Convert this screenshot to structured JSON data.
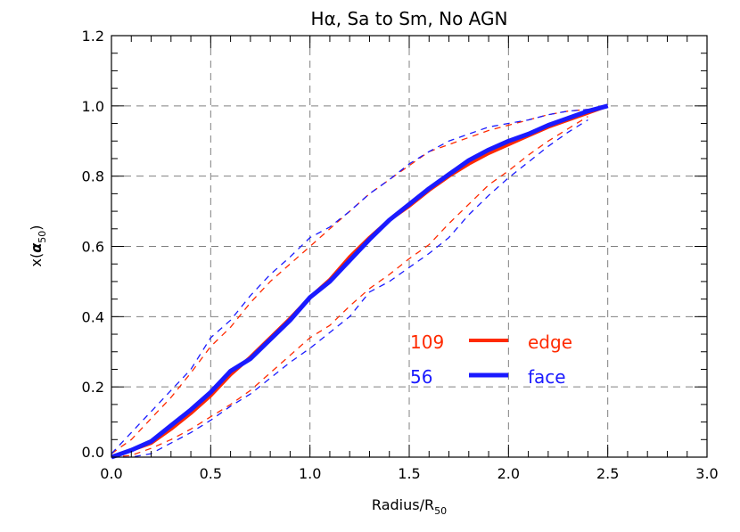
{
  "chart_data": {
    "type": "line",
    "title": "Hα, Sa to Sm, No AGN",
    "xlabel": {
      "main": "Radius/R",
      "sub": "50"
    },
    "ylabel": {
      "pre": "x(",
      "greek": "α",
      "sub": "50",
      "post": ")"
    },
    "xlim": [
      0,
      3.0
    ],
    "ylim": [
      0,
      1.2
    ],
    "xticks": [
      "0.0",
      "0.5",
      "1.0",
      "1.5",
      "2.0",
      "2.5",
      "3.0"
    ],
    "yticks": [
      "0.0",
      "0.2",
      "0.4",
      "0.6",
      "0.8",
      "1.0",
      "1.2"
    ],
    "grid": true,
    "colors": {
      "edge": "#ff2a00",
      "face": "#1a1aff",
      "grid": "#808080",
      "axis": "#000000"
    },
    "legend": [
      {
        "count": "109",
        "label": "edge",
        "color": "#ff2a00"
      },
      {
        "count": "56",
        "label": "face",
        "color": "#1a1aff"
      }
    ],
    "legend_position": "lower-right",
    "x": [
      0,
      0.1,
      0.2,
      0.3,
      0.4,
      0.5,
      0.6,
      0.7,
      0.8,
      0.9,
      1.0,
      1.1,
      1.2,
      1.3,
      1.4,
      1.5,
      1.6,
      1.7,
      1.8,
      1.9,
      2.0,
      2.1,
      2.2,
      2.3,
      2.4,
      2.5
    ],
    "series": [
      {
        "group": "edge",
        "style": "solid",
        "values": [
          0,
          0.02,
          0.04,
          0.08,
          0.125,
          0.175,
          0.235,
          0.285,
          0.34,
          0.395,
          0.455,
          0.505,
          0.57,
          0.625,
          0.675,
          0.715,
          0.76,
          0.8,
          0.835,
          0.865,
          0.89,
          0.915,
          0.94,
          0.96,
          0.98,
          1.0
        ]
      },
      {
        "group": "face",
        "style": "solid",
        "values": [
          0,
          0.02,
          0.045,
          0.09,
          0.135,
          0.185,
          0.245,
          0.28,
          0.335,
          0.39,
          0.455,
          0.5,
          0.56,
          0.62,
          0.675,
          0.72,
          0.765,
          0.805,
          0.845,
          0.875,
          0.9,
          0.92,
          0.945,
          0.965,
          0.985,
          1.0
        ]
      },
      {
        "group": "edge",
        "style": "dashed",
        "values": [
          0.01,
          0.05,
          0.11,
          0.17,
          0.24,
          0.315,
          0.37,
          0.44,
          0.5,
          0.55,
          0.6,
          0.65,
          0.7,
          0.75,
          0.79,
          0.83,
          0.87,
          0.89,
          0.91,
          0.93,
          0.945,
          0.96,
          0.975,
          0.985,
          0.99,
          null
        ]
      },
      {
        "group": "face",
        "style": "dashed",
        "values": [
          0.01,
          0.07,
          0.13,
          0.19,
          0.25,
          0.34,
          0.39,
          0.46,
          0.52,
          0.57,
          0.625,
          0.655,
          0.7,
          0.75,
          0.79,
          0.835,
          0.87,
          0.9,
          0.92,
          0.94,
          0.95,
          0.96,
          0.975,
          0.985,
          0.99,
          null
        ]
      },
      {
        "group": "edge",
        "style": "dashed",
        "values": [
          0,
          0.005,
          0.025,
          0.05,
          0.08,
          0.115,
          0.15,
          0.19,
          0.24,
          0.29,
          0.34,
          0.375,
          0.43,
          0.48,
          0.52,
          0.565,
          0.605,
          0.665,
          0.72,
          0.775,
          0.815,
          0.86,
          0.9,
          0.935,
          0.97,
          null
        ]
      },
      {
        "group": "face",
        "style": "dashed",
        "values": [
          0,
          0,
          0.01,
          0.04,
          0.07,
          0.105,
          0.145,
          0.18,
          0.225,
          0.27,
          0.31,
          0.355,
          0.4,
          0.47,
          0.5,
          0.54,
          0.58,
          0.625,
          0.69,
          0.745,
          0.795,
          0.84,
          0.885,
          0.925,
          0.96,
          null
        ]
      }
    ]
  }
}
